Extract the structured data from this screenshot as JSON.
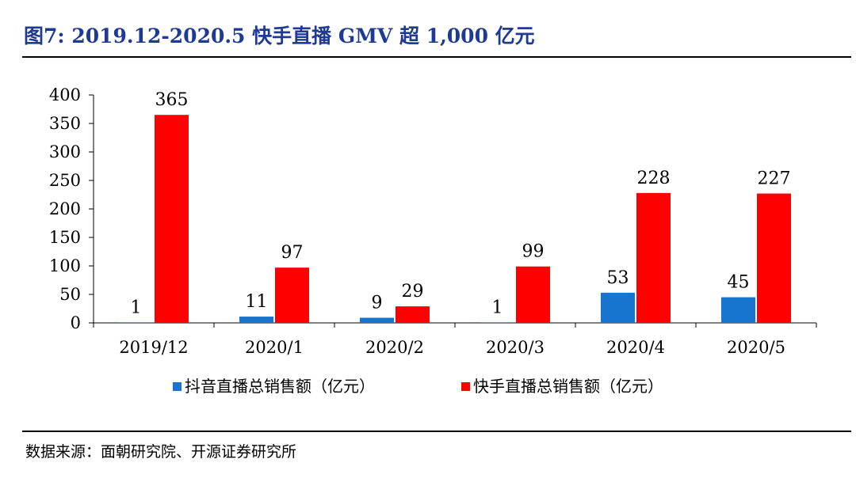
{
  "figure": {
    "title": "图7:  2019.12-2020.5 快手直播 GMV 超 1,000 亿元",
    "source": "数据来源：面朝研究院、开源证券研究所"
  },
  "colors": {
    "title": "#1f3a93",
    "douyin": "#1874cd",
    "kuaishou": "#ff0000"
  },
  "chart_data": {
    "type": "bar",
    "title": "",
    "xlabel": "",
    "ylabel": "",
    "categories": [
      "2019/12",
      "2020/1",
      "2020/2",
      "2020/3",
      "2020/4",
      "2020/5"
    ],
    "series": [
      {
        "name": "抖音直播总销售额（亿元）",
        "values": [
          1,
          11,
          9,
          1,
          53,
          45
        ]
      },
      {
        "name": "快手直播总销售额（亿元）",
        "values": [
          365,
          97,
          29,
          99,
          228,
          227
        ]
      }
    ],
    "ylim": [
      0,
      400
    ],
    "yticks": [
      0,
      50,
      100,
      150,
      200,
      250,
      300,
      350,
      400
    ],
    "grid": false,
    "legend": "bottom"
  }
}
